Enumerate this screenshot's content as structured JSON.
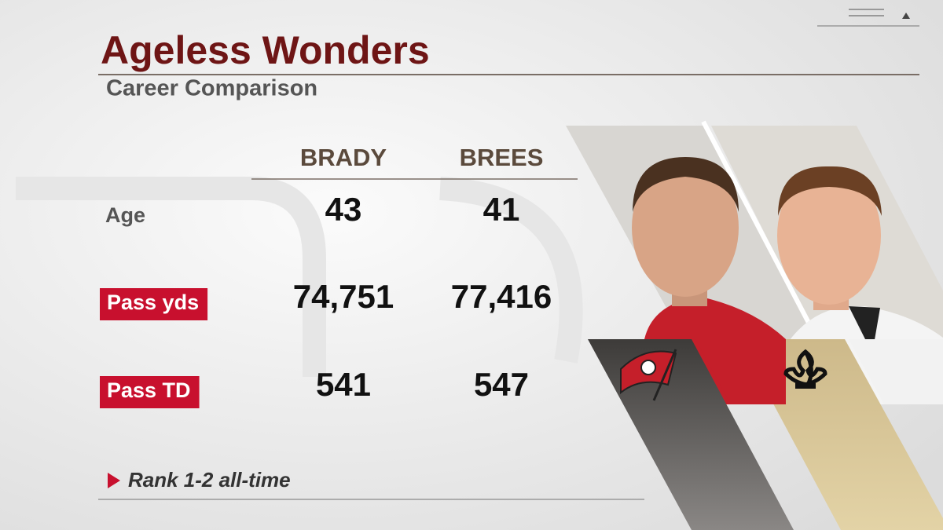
{
  "header": {
    "title": "Ageless Wonders",
    "subtitle": "Career Comparison"
  },
  "table": {
    "columns": [
      "BRADY",
      "BREES"
    ],
    "rows": [
      {
        "label": "Age",
        "highlight": false,
        "values": [
          "43",
          "41"
        ]
      },
      {
        "label": "Pass yds",
        "highlight": true,
        "values": [
          "74,751",
          "77,416"
        ]
      },
      {
        "label": "Pass TD",
        "highlight": true,
        "values": [
          "541",
          "547"
        ]
      }
    ]
  },
  "footnote": "Rank 1-2 all-time"
}
